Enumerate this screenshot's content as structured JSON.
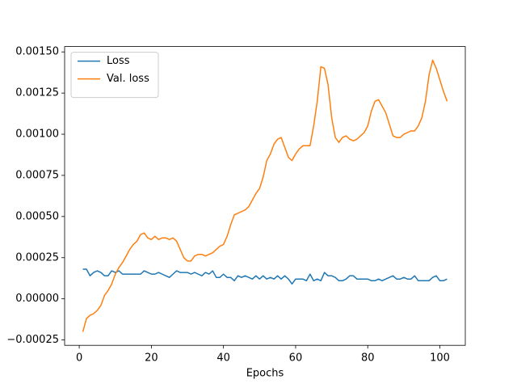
{
  "chart_data": {
    "type": "line",
    "xlabel": "Epochs",
    "legend": "upper left",
    "x": [
      1,
      2,
      3,
      4,
      5,
      6,
      7,
      8,
      9,
      10,
      11,
      12,
      13,
      14,
      15,
      16,
      17,
      18,
      19,
      20,
      21,
      22,
      23,
      24,
      25,
      26,
      27,
      28,
      29,
      30,
      31,
      32,
      33,
      34,
      35,
      36,
      37,
      38,
      39,
      40,
      41,
      42,
      43,
      44,
      45,
      46,
      47,
      48,
      49,
      50,
      51,
      52,
      53,
      54,
      55,
      56,
      57,
      58,
      59,
      60,
      61,
      62,
      63,
      64,
      65,
      66,
      67,
      68,
      69,
      70,
      71,
      72,
      73,
      74,
      75,
      76,
      77,
      78,
      79,
      80,
      81,
      82,
      83,
      84,
      85,
      86,
      87,
      88,
      89,
      90,
      91,
      92,
      93,
      94,
      95,
      96,
      97,
      98,
      99,
      100,
      101,
      102
    ],
    "series": [
      {
        "name": "Loss",
        "color": "#1f77b4",
        "values": [
          0.00018,
          0.00018,
          0.00014,
          0.00016,
          0.00017,
          0.00016,
          0.00014,
          0.00014,
          0.00017,
          0.00016,
          0.00017,
          0.00015,
          0.00015,
          0.00015,
          0.00015,
          0.00015,
          0.00015,
          0.00017,
          0.00016,
          0.00015,
          0.00015,
          0.00016,
          0.00015,
          0.00014,
          0.00013,
          0.00015,
          0.00017,
          0.00016,
          0.00016,
          0.00016,
          0.00015,
          0.00016,
          0.00015,
          0.00014,
          0.00016,
          0.00015,
          0.00017,
          0.00013,
          0.00013,
          0.00015,
          0.00013,
          0.00013,
          0.00011,
          0.00014,
          0.00013,
          0.00014,
          0.00013,
          0.00012,
          0.00014,
          0.00012,
          0.00014,
          0.00012,
          0.00013,
          0.00012,
          0.00014,
          0.00012,
          0.00014,
          0.00012,
          9e-05,
          0.00012,
          0.00012,
          0.00012,
          0.00011,
          0.00015,
          0.00011,
          0.00012,
          0.00011,
          0.00016,
          0.00014,
          0.00014,
          0.00013,
          0.00011,
          0.00011,
          0.00012,
          0.00014,
          0.00014,
          0.00012,
          0.00012,
          0.00012,
          0.00012,
          0.00011,
          0.00011,
          0.00012,
          0.00011,
          0.00012,
          0.00013,
          0.00014,
          0.00012,
          0.00012,
          0.00013,
          0.00012,
          0.00012,
          0.00014,
          0.00011,
          0.00011,
          0.00011,
          0.00011,
          0.00013,
          0.00014,
          0.00011,
          0.00011,
          0.00012
        ]
      },
      {
        "name": "Val. loss",
        "color": "#ff7f0e",
        "values": [
          -0.0002,
          -0.00012,
          -0.0001,
          -9e-05,
          -7e-05,
          -4e-05,
          2e-05,
          5e-05,
          9e-05,
          0.00015,
          0.00019,
          0.00022,
          0.00026,
          0.0003,
          0.00033,
          0.00035,
          0.00039,
          0.0004,
          0.00037,
          0.00036,
          0.00038,
          0.00036,
          0.00037,
          0.00037,
          0.00036,
          0.00037,
          0.00035,
          0.0003,
          0.00025,
          0.00023,
          0.00023,
          0.00026,
          0.00027,
          0.00027,
          0.00026,
          0.00027,
          0.00028,
          0.0003,
          0.00032,
          0.00033,
          0.00038,
          0.00045,
          0.00051,
          0.00052,
          0.00053,
          0.00054,
          0.00056,
          0.0006,
          0.00064,
          0.00067,
          0.00074,
          0.00084,
          0.00088,
          0.00094,
          0.00097,
          0.00098,
          0.00092,
          0.00086,
          0.00084,
          0.00088,
          0.00091,
          0.00093,
          0.00093,
          0.00093,
          0.00105,
          0.0012,
          0.00141,
          0.0014,
          0.0013,
          0.0011,
          0.00098,
          0.00095,
          0.00098,
          0.00099,
          0.00097,
          0.00096,
          0.00097,
          0.00099,
          0.00101,
          0.00105,
          0.00114,
          0.0012,
          0.00121,
          0.00117,
          0.00113,
          0.00106,
          0.00099,
          0.00098,
          0.00098,
          0.001,
          0.00101,
          0.00102,
          0.00102,
          0.00105,
          0.0011,
          0.0012,
          0.00136,
          0.00145,
          0.0014,
          0.00133,
          0.00126,
          0.0012
        ]
      }
    ],
    "xlim": [
      -4.05,
      107.05
    ],
    "xticks": [
      0,
      20,
      40,
      60,
      80,
      100
    ],
    "ylim": [
      -0.0002825,
      0.0015325
    ],
    "yticks": [
      {
        "value": -0.00025,
        "label": "−0.00025"
      },
      {
        "value": 0,
        "label": "0.00000"
      },
      {
        "value": 0.00025,
        "label": "0.00025"
      },
      {
        "value": 0.0005,
        "label": "0.00050"
      },
      {
        "value": 0.00075,
        "label": "0.00075"
      },
      {
        "value": 0.001,
        "label": "0.00100"
      },
      {
        "value": 0.00125,
        "label": "0.00125"
      },
      {
        "value": 0.0015,
        "label": "0.00150"
      }
    ]
  }
}
